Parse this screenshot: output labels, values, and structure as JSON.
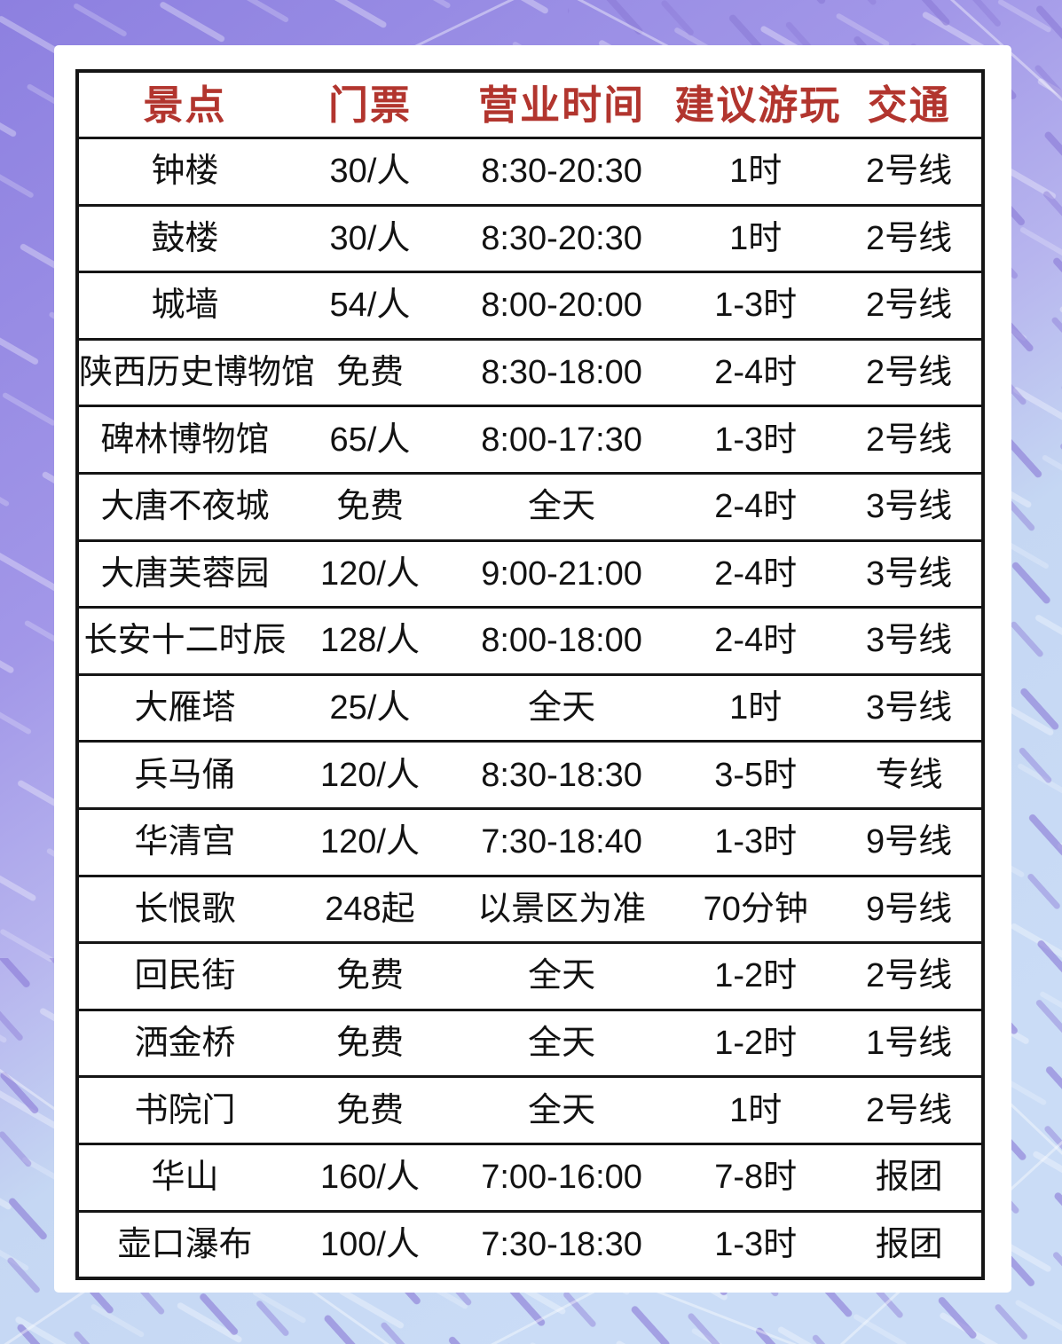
{
  "theme": {
    "background_top": "#8d80e0",
    "background_mid": "#a99df0",
    "background_bottom": "#cadcf6",
    "card_background": "#ffffff",
    "header_text_color": "#b2352e",
    "body_text_color": "#121212",
    "border_color": "#151515",
    "dash_purple": "#8b7ad7",
    "dash_white": "#ffffff"
  },
  "table": {
    "columns": [
      {
        "key": "name",
        "label": "景点"
      },
      {
        "key": "ticket",
        "label": "门票"
      },
      {
        "key": "hours",
        "label": "营业时间"
      },
      {
        "key": "duration",
        "label": "建议游玩"
      },
      {
        "key": "transport",
        "label": "交通"
      }
    ],
    "rows": [
      [
        "钟楼",
        "30/人",
        "8:30-20:30",
        "1时",
        "2号线"
      ],
      [
        "鼓楼",
        "30/人",
        "8:30-20:30",
        "1时",
        "2号线"
      ],
      [
        "城墙",
        "54/人",
        "8:00-20:00",
        "1-3时",
        "2号线"
      ],
      [
        "陕西历史博物馆",
        "免费",
        "8:30-18:00",
        "2-4时",
        "2号线"
      ],
      [
        "碑林博物馆",
        "65/人",
        "8:00-17:30",
        "1-3时",
        "2号线"
      ],
      [
        "大唐不夜城",
        "免费",
        "全天",
        "2-4时",
        "3号线"
      ],
      [
        "大唐芙蓉园",
        "120/人",
        "9:00-21:00",
        "2-4时",
        "3号线"
      ],
      [
        "长安十二时辰",
        "128/人",
        "8:00-18:00",
        "2-4时",
        "3号线"
      ],
      [
        "大雁塔",
        "25/人",
        "全天",
        "1时",
        "3号线"
      ],
      [
        "兵马俑",
        "120/人",
        "8:30-18:30",
        "3-5时",
        "专线"
      ],
      [
        "华清宫",
        "120/人",
        "7:30-18:40",
        "1-3时",
        "9号线"
      ],
      [
        "长恨歌",
        "248起",
        "以景区为准",
        "70分钟",
        "9号线"
      ],
      [
        "回民街",
        "免费",
        "全天",
        "1-2时",
        "2号线"
      ],
      [
        "洒金桥",
        "免费",
        "全天",
        "1-2时",
        "1号线"
      ],
      [
        "书院门",
        "免费",
        "全天",
        "1时",
        "2号线"
      ],
      [
        "华山",
        "160/人",
        "7:00-16:00",
        "7-8时",
        "报团"
      ],
      [
        "壶口瀑布",
        "100/人",
        "7:30-18:30",
        "1-3时",
        "报团"
      ]
    ]
  }
}
